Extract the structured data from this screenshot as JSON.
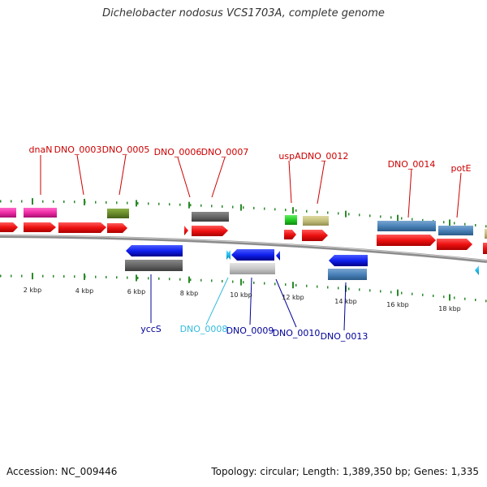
{
  "title": "Dichelobacter nodosus VCS1703A, complete genome",
  "footer": {
    "accession": "Accession: NC_009446",
    "summary": "Topology: circular; Length: 1,389,350 bp; Genes: 1,335"
  },
  "colors": {
    "forward_label": "#cc0000",
    "reverse_label": "#00009a",
    "cyan_label": "#33bbdd",
    "tick": "#2a8a2a",
    "backbone": "#8c8c8c",
    "cds_red": "#ee1111",
    "trna_cyan": "#22bbee"
  },
  "scale": {
    "ticks": [
      {
        "label": "2 kbp"
      },
      {
        "label": "4 kbp"
      },
      {
        "label": "6 kbp"
      },
      {
        "label": "8 kbp"
      },
      {
        "label": "10 kbp"
      },
      {
        "label": "12 kbp"
      },
      {
        "label": "14 kbp"
      },
      {
        "label": "16 kbp"
      },
      {
        "label": "18 kbp"
      }
    ]
  },
  "forward_labels": [
    {
      "text": "dnaN"
    },
    {
      "text": "DNO_0003"
    },
    {
      "text": "DNO_0005"
    },
    {
      "text": "DNO_0006"
    },
    {
      "text": "DNO_0007"
    },
    {
      "text": "uspA"
    },
    {
      "text": "DNO_0012"
    },
    {
      "text": "DNO_0014"
    },
    {
      "text": "potE"
    }
  ],
  "reverse_labels": [
    {
      "text": "yccS"
    },
    {
      "text": "DNO_0008"
    },
    {
      "text": "DNO_0009"
    },
    {
      "text": "DNO_0010"
    },
    {
      "text": "DNO_0013"
    }
  ]
}
